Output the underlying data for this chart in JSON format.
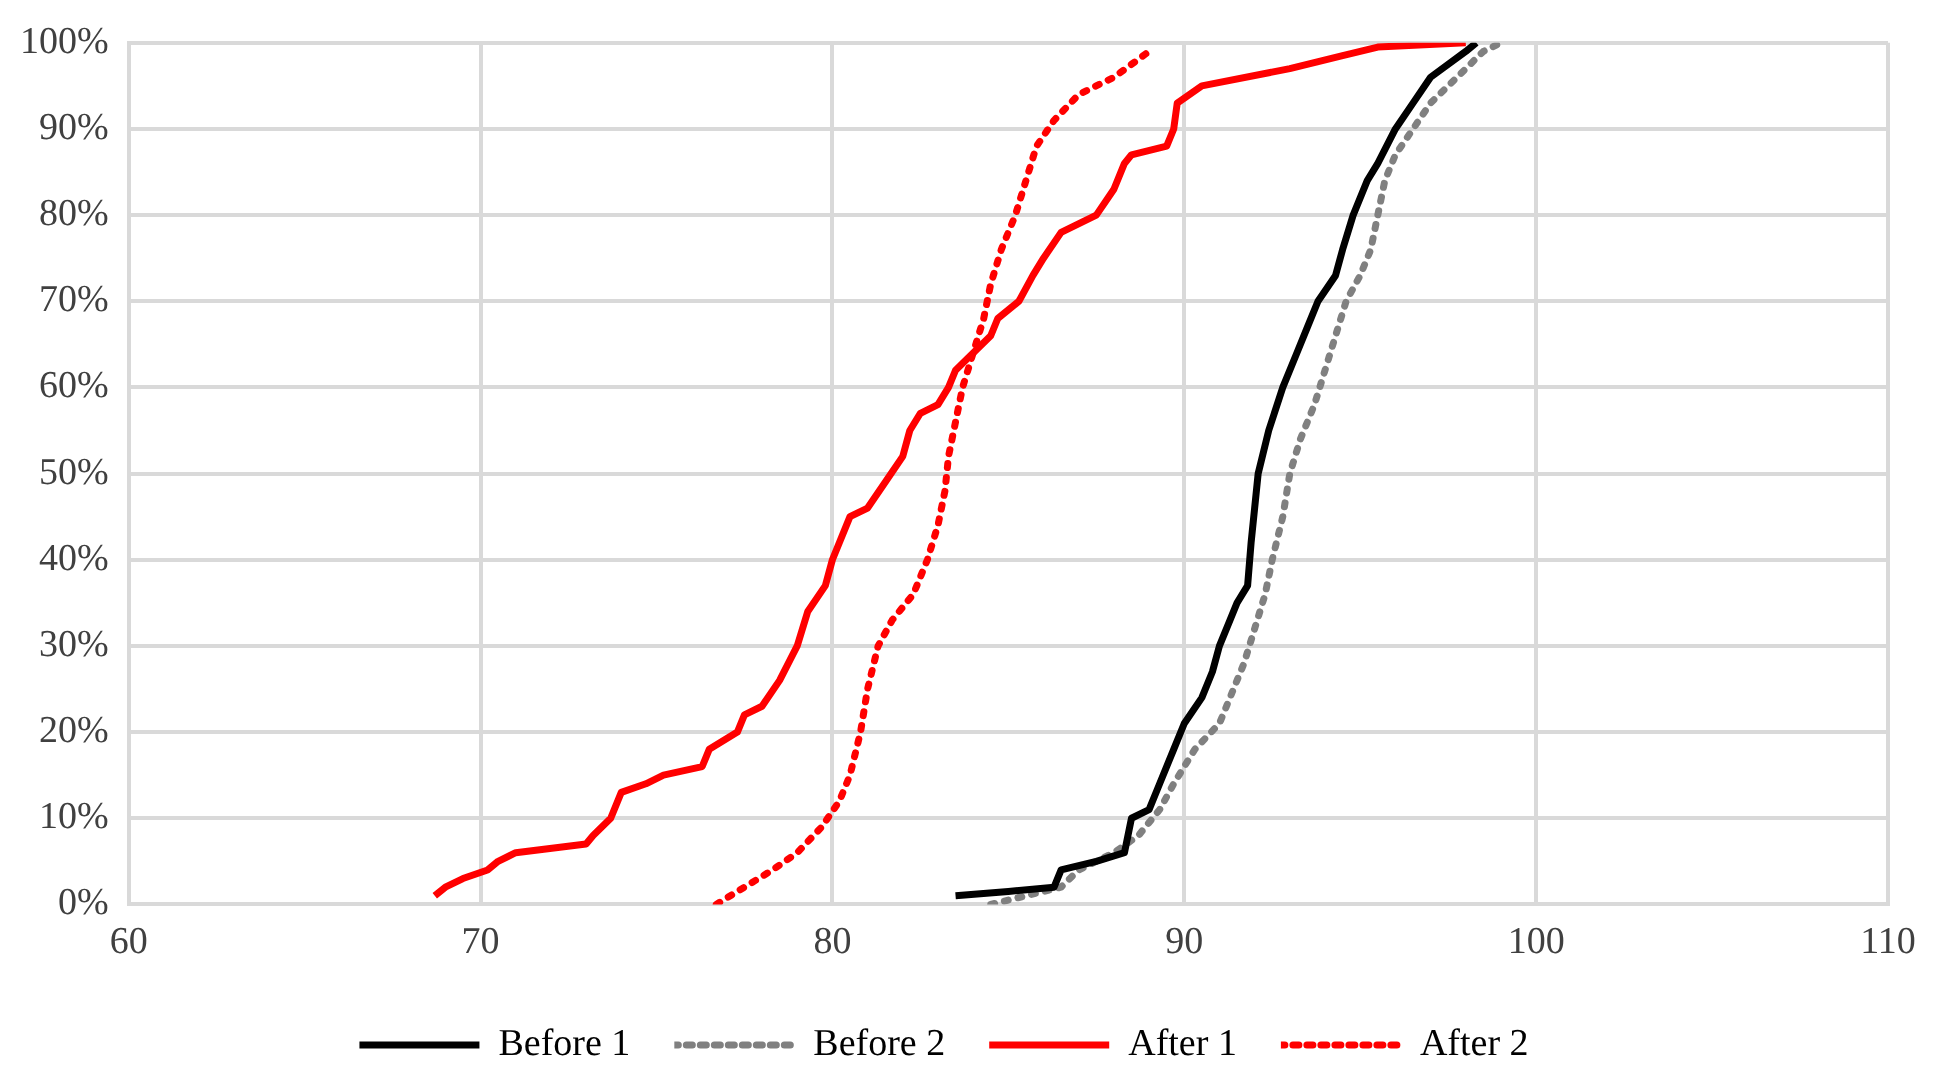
{
  "chart_data": {
    "type": "line",
    "legend": "bottom",
    "grid": true,
    "marker": "none",
    "xlim": [
      60,
      110
    ],
    "xticks": [
      60,
      70,
      80,
      90,
      100,
      110
    ],
    "ylim": [
      0,
      100
    ],
    "yticks": [
      {
        "value": 0,
        "label": "0%"
      },
      {
        "value": 10,
        "label": "10%"
      },
      {
        "value": 20,
        "label": "20%"
      },
      {
        "value": 30,
        "label": "30%"
      },
      {
        "value": 40,
        "label": "40%"
      },
      {
        "value": 50,
        "label": "50%"
      },
      {
        "value": 60,
        "label": "60%"
      },
      {
        "value": 70,
        "label": "70%"
      },
      {
        "value": 80,
        "label": "80%"
      },
      {
        "value": 90,
        "label": "90%"
      },
      {
        "value": 100,
        "label": "100%"
      }
    ],
    "series": [
      {
        "name": "Before 1",
        "color": "#000000",
        "line_style": "solid",
        "x": [
          83.5,
          85,
          86.3,
          86.5,
          87.5,
          88.3,
          88.5,
          89,
          89.3,
          89.7,
          90,
          90.5,
          90.8,
          91,
          91.3,
          91.5,
          91.8,
          91.9,
          92,
          92.1,
          92.4,
          92.8,
          93.2,
          93.5,
          93.8,
          94.3,
          94.5,
          94.8,
          95.2,
          95.5,
          96,
          96.5,
          97,
          98,
          98.3
        ],
        "values": [
          1,
          1.5,
          2,
          4,
          5,
          6,
          10,
          11,
          14,
          18,
          21,
          24,
          27,
          30,
          33,
          35,
          37,
          42,
          46,
          50,
          55,
          60,
          64,
          67,
          70,
          73,
          76,
          80,
          84,
          86,
          90,
          93,
          96,
          99,
          100
        ]
      },
      {
        "name": "Before 2",
        "color": "#808080",
        "line_style": "dotted",
        "x": [
          84.5,
          85.5,
          86.5,
          87,
          88,
          88.7,
          89.3,
          89.7,
          90.3,
          91,
          91.3,
          91.7,
          92,
          92.3,
          92.5,
          92.8,
          93,
          93.3,
          93.7,
          94,
          94.3,
          94.6,
          95,
          95.3,
          95.5,
          95.7,
          96,
          96.5,
          97,
          97.5,
          98.5,
          99
        ],
        "values": [
          0,
          1,
          2,
          4,
          6,
          8,
          11,
          14,
          18,
          21,
          24,
          28,
          32,
          36,
          40,
          45,
          50,
          54,
          58,
          62,
          66,
          70,
          73,
          76,
          80,
          84,
          87,
          90,
          93,
          95,
          99,
          100
        ]
      },
      {
        "name": "After 1",
        "color": "#ff0000",
        "line_style": "solid",
        "x": [
          68.7,
          69,
          69.5,
          70.2,
          70.5,
          71,
          73,
          73.2,
          73.7,
          74,
          74.7,
          75.2,
          76.3,
          76.5,
          77.3,
          77.5,
          78,
          78.5,
          79,
          79.3,
          79.8,
          80,
          80.2,
          80.5,
          81,
          81.5,
          82,
          82.2,
          82.5,
          83,
          83.3,
          83.5,
          84,
          84.5,
          84.7,
          85.3,
          85.7,
          86,
          86.5,
          87.5,
          88,
          88.3,
          88.5,
          89.5,
          89.7,
          89.8,
          90.5,
          93,
          94.5,
          95.5,
          98
        ],
        "values": [
          1,
          2,
          3,
          4,
          5,
          6,
          7,
          8,
          10,
          13,
          14,
          15,
          16,
          18,
          20,
          22,
          23,
          26,
          30,
          34,
          37,
          40,
          42,
          45,
          46,
          49,
          52,
          55,
          57,
          58,
          60,
          62,
          64,
          66,
          68,
          70,
          73,
          75,
          78,
          80,
          83,
          86,
          87,
          88,
          90,
          93,
          95,
          97,
          98.5,
          99.5,
          100
        ]
      },
      {
        "name": "After 2",
        "color": "#ff0000",
        "line_style": "dotted",
        "x": [
          76.7,
          77.5,
          78.3,
          79,
          79.7,
          80.2,
          80.5,
          80.8,
          81,
          81.3,
          81.7,
          82.3,
          82.7,
          83,
          83.2,
          83.3,
          83.5,
          83.7,
          84,
          84.3,
          84.5,
          84.8,
          85.2,
          85.5,
          85.8,
          86.3,
          87,
          88,
          89
        ],
        "values": [
          0,
          2,
          4,
          6,
          9,
          12,
          15,
          20,
          25,
          30,
          33,
          36,
          40,
          44,
          48,
          52,
          56,
          60,
          64,
          68,
          72,
          76,
          80,
          84,
          88,
          91,
          94,
          96,
          99
        ]
      }
    ]
  }
}
